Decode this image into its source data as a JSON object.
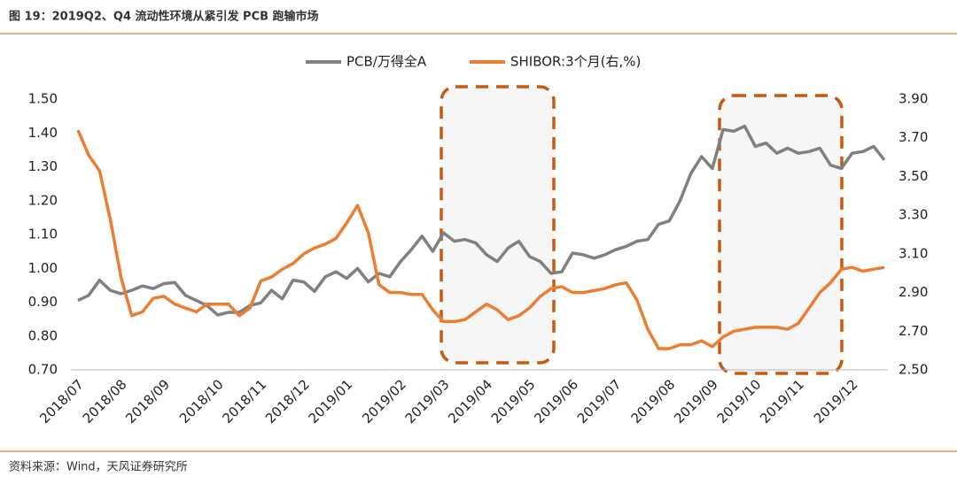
{
  "chart_data": {
    "type": "line",
    "title": "图 19：2019Q2、Q4 流动性环境从紧引发 PCB 跑输市场",
    "source": "资料来源：Wind，天风证券研究所",
    "legend": "top",
    "categories": [
      "2018/07",
      null,
      null,
      null,
      "2018/08",
      null,
      null,
      null,
      "2018/09",
      null,
      null,
      null,
      null,
      "2018/10",
      null,
      null,
      null,
      "2018/11",
      null,
      null,
      null,
      "2018/12",
      null,
      null,
      null,
      "2019/01",
      null,
      null,
      null,
      null,
      "2019/02",
      null,
      null,
      null,
      "2019/03",
      null,
      null,
      null,
      "2019/04",
      null,
      null,
      null,
      "2019/05",
      null,
      null,
      null,
      "2019/06",
      null,
      null,
      null,
      "2019/07",
      null,
      null,
      null,
      null,
      "2019/08",
      null,
      null,
      null,
      "2019/09",
      null,
      null,
      null,
      "2019/10",
      null,
      null,
      null,
      "2019/11",
      null,
      null,
      null,
      null,
      "2019/12",
      null,
      null,
      null
    ],
    "series": [
      {
        "name": "PCB/万得全A",
        "color": "#808080",
        "values": [
          0.905,
          0.92,
          0.965,
          0.935,
          0.925,
          0.935,
          0.948,
          0.94,
          0.955,
          0.958,
          0.92,
          0.905,
          0.89,
          0.862,
          0.87,
          0.87,
          0.89,
          0.898,
          0.935,
          0.91,
          0.965,
          0.96,
          0.932,
          0.975,
          0.99,
          0.97,
          1.0,
          0.96,
          0.985,
          0.975,
          1.02,
          1.055,
          1.095,
          1.05,
          1.105,
          1.08,
          1.085,
          1.075,
          1.04,
          1.02,
          1.06,
          1.08,
          1.035,
          1.02,
          0.985,
          0.99,
          1.045,
          1.04,
          1.03,
          1.04,
          1.055,
          1.065,
          1.08,
          1.085,
          1.13,
          1.14,
          1.2,
          1.28,
          1.33,
          1.295,
          1.41,
          1.405,
          1.42,
          1.36,
          1.37,
          1.34,
          1.355,
          1.34,
          1.345,
          1.355,
          1.305,
          1.295,
          1.34,
          1.345,
          1.36,
          1.32
        ]
      },
      {
        "name": "SHIBOR:3个月(右,%)",
        "color": "#ED7D31",
        "axis": "y2",
        "values": [
          3.74,
          3.61,
          3.53,
          3.28,
          2.98,
          2.78,
          2.8,
          2.87,
          2.88,
          2.84,
          2.82,
          2.8,
          2.84,
          2.84,
          2.84,
          2.78,
          2.82,
          2.96,
          2.98,
          3.02,
          3.05,
          3.1,
          3.13,
          3.15,
          3.18,
          3.26,
          3.35,
          3.21,
          2.94,
          2.9,
          2.9,
          2.89,
          2.89,
          2.81,
          2.75,
          2.75,
          2.76,
          2.8,
          2.84,
          2.81,
          2.76,
          2.78,
          2.82,
          2.88,
          2.92,
          2.93,
          2.9,
          2.9,
          2.91,
          2.92,
          2.94,
          2.95,
          2.86,
          2.71,
          2.61,
          2.61,
          2.63,
          2.63,
          2.65,
          2.62,
          2.67,
          2.7,
          2.71,
          2.72,
          2.72,
          2.72,
          2.71,
          2.74,
          2.82,
          2.9,
          2.95,
          3.02,
          3.03,
          3.01,
          3.02,
          3.03
        ]
      }
    ],
    "ylim": [
      0.7,
      1.5
    ],
    "yticks": [
      {
        "value": 0.7,
        "label": "0.70"
      },
      {
        "value": 0.8,
        "label": "0.80"
      },
      {
        "value": 0.9,
        "label": "0.90"
      },
      {
        "value": 1.0,
        "label": "1.00"
      },
      {
        "value": 1.1,
        "label": "1.10"
      },
      {
        "value": 1.2,
        "label": "1.20"
      },
      {
        "value": 1.3,
        "label": "1.30"
      },
      {
        "value": 1.4,
        "label": "1.40"
      },
      {
        "value": 1.5,
        "label": "1.50"
      }
    ],
    "y2lim": [
      2.5,
      3.9
    ],
    "y2ticks": [
      {
        "value": 2.5,
        "label": "2.50"
      },
      {
        "value": 2.7,
        "label": "2.70"
      },
      {
        "value": 2.9,
        "label": "2.90"
      },
      {
        "value": 3.1,
        "label": "3.10"
      },
      {
        "value": 3.3,
        "label": "3.30"
      },
      {
        "value": 3.5,
        "label": "3.50"
      },
      {
        "value": 3.7,
        "label": "3.70"
      },
      {
        "value": 3.9,
        "label": "3.90"
      }
    ],
    "grid": false
  }
}
